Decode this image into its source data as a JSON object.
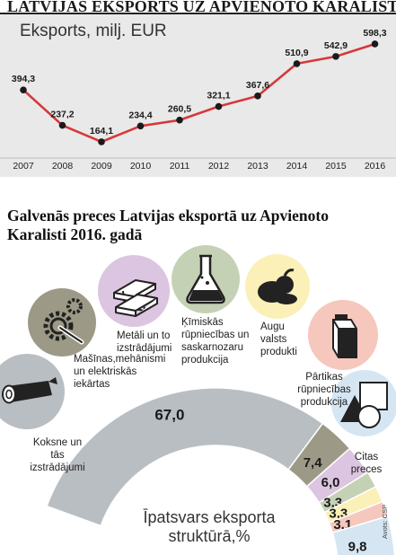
{
  "title": "LATVIJAS EKSPORTS UZ APVIENOTO KARALISTI",
  "source": "Avots: CSP",
  "chart_data": [
    {
      "type": "line",
      "ylabel": "Eksports, milj. EUR",
      "x": [
        "2007",
        "2008",
        "2009",
        "2010",
        "2011",
        "2012",
        "2013",
        "2014",
        "2015",
        "2016"
      ],
      "series": [
        {
          "values": [
            394.3,
            237.2,
            164.1,
            234.4,
            260.5,
            321.1,
            367.6,
            510.9,
            542.9,
            598.3
          ]
        }
      ],
      "data_labels": [
        "394,3",
        "237,2",
        "164,1",
        "234,4",
        "260,5",
        "321,1",
        "367,6",
        "510,9",
        "542,9",
        "598,3"
      ],
      "ylim": [
        100,
        650
      ],
      "line_color": "#d6383a",
      "marker_color": "#1a1a1a",
      "grid": false
    },
    {
      "type": "pie",
      "subtitle": "Galvenās preces Latvijas eksportā uz Apvienoto Karalisti 2016. gadā",
      "center_label": "Īpatsvars eksporta struktūrā,%",
      "categories": [
        "Koksne un tās izstrādājumi",
        "Mašīnas,mehānismi un elektriskās iekārtas",
        "Metāli un to izstrādājumi",
        "Ķīmiskās rūpniecības un saskarnozaru produkcija",
        "Augu valsts produkti",
        "Pārtikas rūpniecības produkcija",
        "Citas preces"
      ],
      "values": [
        67.0,
        7.4,
        6.0,
        3.3,
        3.3,
        3.1,
        9.8
      ],
      "value_labels": [
        "67,0",
        "7,4",
        "6,0",
        "3,3",
        "3,3",
        "3,1",
        "9,8"
      ],
      "colors": [
        "#b9bec3",
        "#9c9a86",
        "#dcc5e0",
        "#c5d1b5",
        "#fbf0b8",
        "#f6c7bd",
        "#d5e6f2"
      ]
    }
  ]
}
